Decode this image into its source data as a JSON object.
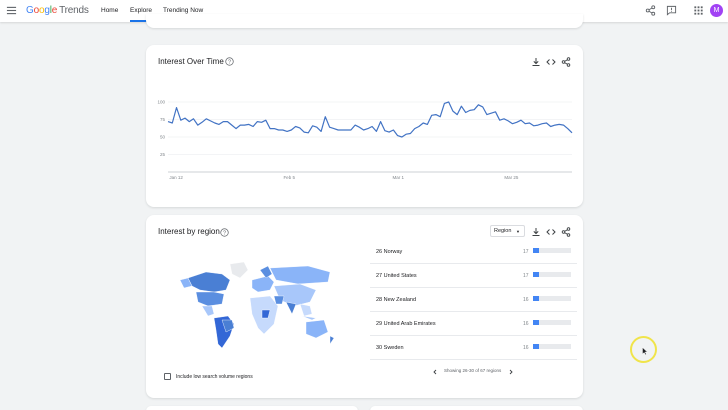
{
  "header": {
    "logo_google": [
      "G",
      "o",
      "o",
      "g",
      "l",
      "e"
    ],
    "logo_trends": "Trends",
    "nav": [
      {
        "label": "Home"
      },
      {
        "label": "Explore",
        "active": true
      },
      {
        "label": "Trending Now"
      }
    ],
    "avatar_letter": "M",
    "icons": [
      "menu-icon",
      "share-icon",
      "feedback-icon",
      "apps-grid-icon"
    ]
  },
  "interest_over_time": {
    "title": "Interest Over Time",
    "chart_data": {
      "type": "line",
      "y_ticks": [
        "100",
        "75",
        "50",
        "25"
      ],
      "x_tick_labels": [
        "Jan 12",
        "Feb 5",
        "Mar 1",
        "Mar 25"
      ],
      "ylim": [
        0,
        100
      ],
      "grid": true,
      "series": [
        {
          "color": "#4273c4",
          "values": [
            72,
            70,
            92,
            74,
            77,
            72,
            76,
            67,
            71,
            76,
            73,
            70,
            68,
            72,
            72,
            67,
            62,
            67,
            67,
            68,
            65,
            72,
            71,
            74,
            62,
            62,
            60,
            60,
            58,
            60,
            65,
            63,
            57,
            56,
            66,
            64,
            58,
            79,
            64,
            62,
            60,
            60,
            60,
            60,
            67,
            64,
            60,
            62,
            65,
            58,
            72,
            59,
            57,
            60,
            52,
            50,
            54,
            55,
            62,
            65,
            70,
            68,
            81,
            82,
            79,
            98,
            100,
            87,
            82,
            94,
            85,
            88,
            89,
            96,
            93,
            82,
            84,
            86,
            74,
            76,
            73,
            69,
            71,
            74,
            69,
            70,
            66,
            67,
            69,
            70,
            65,
            67,
            68,
            67,
            62,
            56
          ]
        }
      ]
    }
  },
  "interest_by_region": {
    "title": "Interest by region",
    "select_label": "Region",
    "rows": [
      {
        "rank_name": "26 Norway",
        "value": "17",
        "score": 17
      },
      {
        "rank_name": "27 United States",
        "value": "17",
        "score": 17
      },
      {
        "rank_name": "28 New Zealand",
        "value": "16",
        "score": 16
      },
      {
        "rank_name": "29 United Arab Emirates",
        "value": "16",
        "score": 16
      },
      {
        "rank_name": "30 Sweden",
        "value": "16",
        "score": 16
      }
    ],
    "paging_text": "Showing 26-30 of 67 regions",
    "checkbox_label": "Include low search volume regions"
  }
}
